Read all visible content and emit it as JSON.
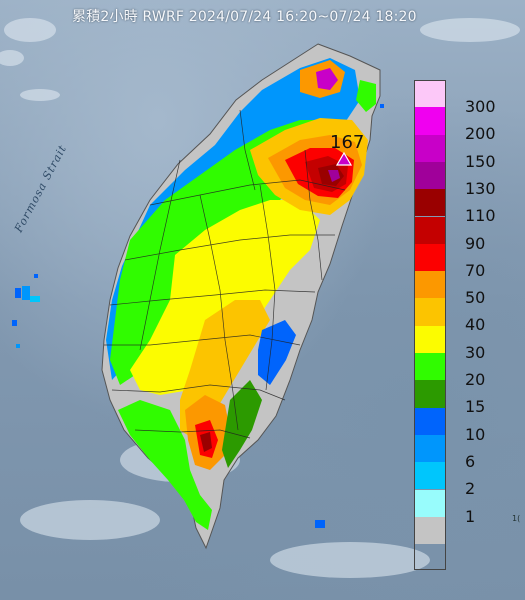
{
  "title": "累積2小時 RWRF 2024/07/24 16:20~07/24 18:20",
  "map": {
    "strait_label": "Formosa Strait",
    "max_value": "167",
    "corner_text": "1("
  },
  "legend": {
    "items": [
      {
        "label": "300",
        "color": "#fcc8f8"
      },
      {
        "label": "200",
        "color": "#f000f0"
      },
      {
        "label": "150",
        "color": "#c800c8"
      },
      {
        "label": "130",
        "color": "#a0009a"
      },
      {
        "label": "110",
        "color": "#9a0000"
      },
      {
        "label": "90",
        "color": "#c40000"
      },
      {
        "label": "70",
        "color": "#fc0000"
      },
      {
        "label": "50",
        "color": "#fc9800"
      },
      {
        "label": "40",
        "color": "#fcc400"
      },
      {
        "label": "30",
        "color": "#fcfc00"
      },
      {
        "label": "20",
        "color": "#30fc00"
      },
      {
        "label": "15",
        "color": "#2c9a00"
      },
      {
        "label": "10",
        "color": "#0064fc"
      },
      {
        "label": "6",
        "color": "#0096fc"
      },
      {
        "label": "2",
        "color": "#00c6fc"
      },
      {
        "label": "1",
        "color": "#98fcfc"
      },
      {
        "label": "",
        "color": "#c4c4c4"
      }
    ]
  }
}
